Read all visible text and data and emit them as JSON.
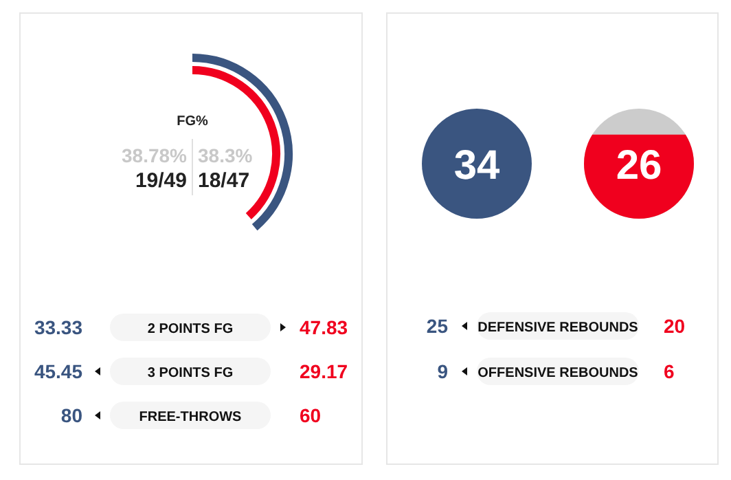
{
  "chart_data": [
    {
      "type": "other",
      "title": "FG%",
      "categories": [
        null,
        null
      ],
      "values": [
        38.78,
        38.3
      ],
      "colors": [
        "#3a5580",
        "#f0001e"
      ],
      "value_labels": [
        "38.78%",
        "38.3%"
      ],
      "annotations": [
        "19/49",
        "18/47"
      ]
    },
    {
      "type": "other",
      "categories": [
        "2 POINTS FG",
        "3 POINTS FG",
        "FREE-THROWS"
      ],
      "data_labels": true,
      "series": [
        {
          "color": "#3a5580",
          "values": [
            33.33,
            45.45,
            80
          ]
        },
        {
          "color": "#f0001e",
          "values": [
            47.83,
            29.17,
            60
          ]
        }
      ]
    },
    {
      "type": "other",
      "categories": [
        null,
        null
      ],
      "values": [
        34,
        26
      ],
      "colors": [
        "#3a5580",
        "#f0001e"
      ],
      "data_labels": true
    },
    {
      "type": "other",
      "categories": [
        "DEFENSIVE REBOUNDS",
        "OFFENSIVE REBOUNDS"
      ],
      "data_labels": true,
      "series": [
        {
          "color": "#3a5580",
          "values": [
            25,
            9
          ]
        },
        {
          "color": "#f0001e",
          "values": [
            20,
            6
          ]
        }
      ]
    }
  ]
}
